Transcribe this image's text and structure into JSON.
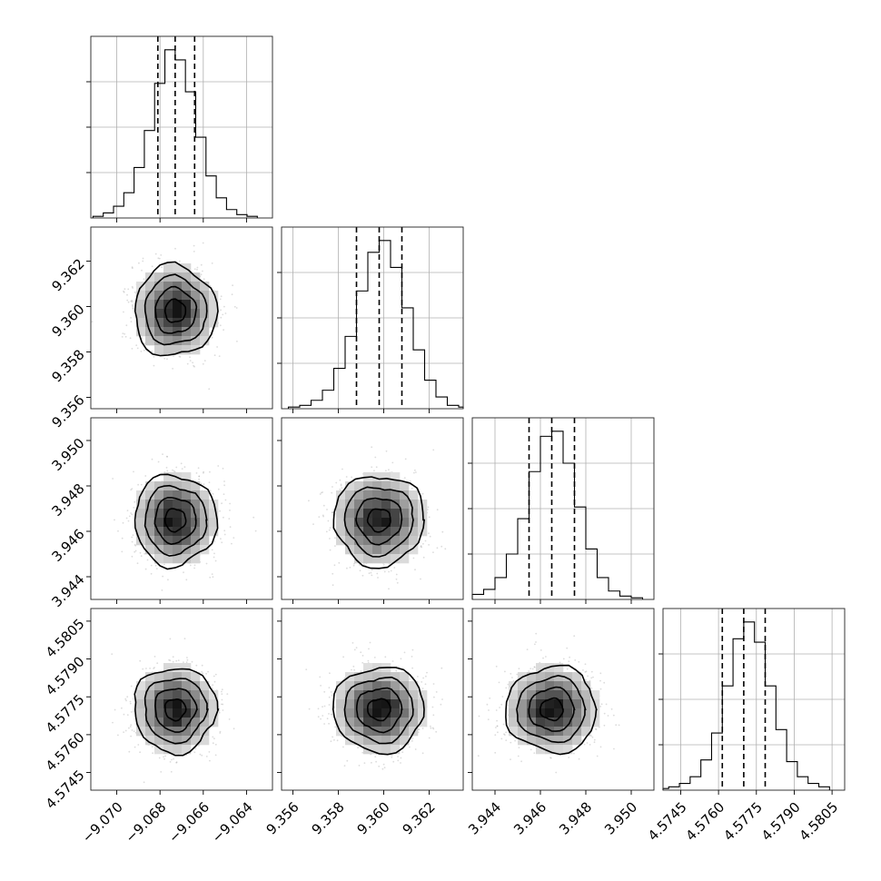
{
  "chart_data": {
    "type": "corner",
    "parameters": [
      {
        "index": 0,
        "range": [
          -9.0712,
          -9.0628
        ],
        "ticks": [
          -9.07,
          -9.068,
          -9.066,
          -9.064
        ],
        "tick_labels": [
          "−9.070",
          "−9.068",
          "−9.066",
          "−9.064"
        ],
        "quantiles": [
          -9.0681,
          -9.0673,
          -9.0664
        ],
        "mean": -9.0673,
        "sigma": 0.00095
      },
      {
        "index": 1,
        "range": [
          9.3555,
          9.3635
        ],
        "ticks": [
          9.356,
          9.358,
          9.36,
          9.362
        ],
        "tick_labels": [
          "9.356",
          "9.358",
          "9.360",
          "9.362"
        ],
        "quantiles": [
          9.3588,
          9.3598,
          9.3608
        ],
        "mean": 9.3598,
        "sigma": 0.001
      },
      {
        "index": 2,
        "range": [
          3.943,
          3.951
        ],
        "ticks": [
          3.944,
          3.946,
          3.948,
          3.95
        ],
        "tick_labels": [
          "3.944",
          "3.946",
          "3.948",
          "3.950"
        ],
        "quantiles": [
          3.9455,
          3.9465,
          3.9475
        ],
        "mean": 3.9465,
        "sigma": 0.001
      },
      {
        "index": 3,
        "range": [
          4.5738,
          4.581
        ],
        "ticks": [
          4.5745,
          4.576,
          4.5775,
          4.579,
          4.5805
        ],
        "tick_labels": [
          "4.5745",
          "4.5760",
          "4.5775",
          "4.5790",
          "4.5805"
        ],
        "quantiles": [
          4.57615,
          4.577,
          4.57785
        ],
        "mean": 4.577,
        "sigma": 0.00085
      }
    ],
    "histograms": [
      {
        "param": 0,
        "counts": [
          1,
          3,
          7,
          15,
          30,
          52,
          80,
          100,
          94,
          75,
          48,
          25,
          12,
          5,
          2,
          1
        ]
      },
      {
        "param": 1,
        "counts": [
          1,
          2,
          5,
          11,
          24,
          43,
          70,
          93,
          100,
          84,
          60,
          35,
          17,
          7,
          2,
          1
        ]
      },
      {
        "param": 2,
        "counts": [
          1,
          3,
          6,
          13,
          27,
          48,
          76,
          97,
          100,
          81,
          55,
          30,
          13,
          5,
          2,
          1
        ]
      },
      {
        "param": 3,
        "counts": [
          1,
          2,
          4,
          8,
          18,
          34,
          62,
          90,
          100,
          88,
          62,
          36,
          17,
          8,
          4,
          2
        ]
      }
    ],
    "pairs": [
      {
        "x": 0,
        "y": 1
      },
      {
        "x": 0,
        "y": 2
      },
      {
        "x": 1,
        "y": 2
      },
      {
        "x": 0,
        "y": 3
      },
      {
        "x": 1,
        "y": 3
      },
      {
        "x": 2,
        "y": 3
      }
    ],
    "contour_sigma_levels": [
      0.5,
      1.0,
      1.5,
      2.0
    ],
    "grid": true,
    "series_color": "#000000",
    "scatter_color": "#9a9a9a"
  }
}
